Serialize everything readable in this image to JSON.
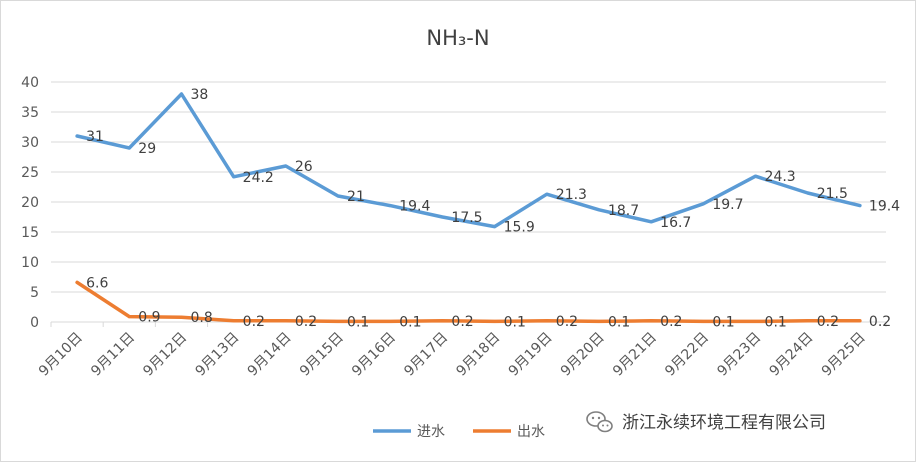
{
  "chart_data": {
    "type": "line",
    "title": "NH₃-N",
    "xlabel": "",
    "ylabel": "",
    "ylim": [
      0,
      40
    ],
    "yticks": [
      "0",
      "5",
      "10",
      "15",
      "20",
      "25",
      "30",
      "35",
      "40"
    ],
    "grid": true,
    "legend_position": "bottom",
    "categories": [
      "9月10日",
      "9月11日",
      "9月12日",
      "9月13日",
      "9月14日",
      "9月15日",
      "9月16日",
      "9月17日",
      "9月18日",
      "9月19日",
      "9月20日",
      "9月21日",
      "9月22日",
      "9月23日",
      "9月24日",
      "9月25日"
    ],
    "series": [
      {
        "name": "进水",
        "color": "#5b9bd5",
        "values": [
          31,
          29,
          38,
          24.2,
          26,
          21,
          19.4,
          17.5,
          15.9,
          21.3,
          18.7,
          16.7,
          19.7,
          24.3,
          21.5,
          19.4
        ],
        "labels": [
          "31",
          "29",
          "38",
          "24.2",
          "26",
          "21",
          "19.4",
          "17.5",
          "15.9",
          "21.3",
          "18.7",
          "16.7",
          "19.7",
          "24.3",
          "21.5",
          "19.4"
        ]
      },
      {
        "name": "出水",
        "color": "#ed7d31",
        "values": [
          6.6,
          0.9,
          0.8,
          0.2,
          0.2,
          0.1,
          0.1,
          0.2,
          0.1,
          0.2,
          0.1,
          0.2,
          0.1,
          0.1,
          0.2,
          0.2
        ],
        "labels": [
          "6.6",
          "0.9",
          "0.8",
          "0.2",
          "0.2",
          "0.1",
          "0.1",
          "0.2",
          "0.1",
          "0.2",
          "0.1",
          "0.2",
          "0.1",
          "0.1",
          "0.2",
          "0.2"
        ]
      }
    ]
  },
  "watermark": {
    "text": "浙江永续环境工程有限公司",
    "icon": "wechat-icon"
  }
}
